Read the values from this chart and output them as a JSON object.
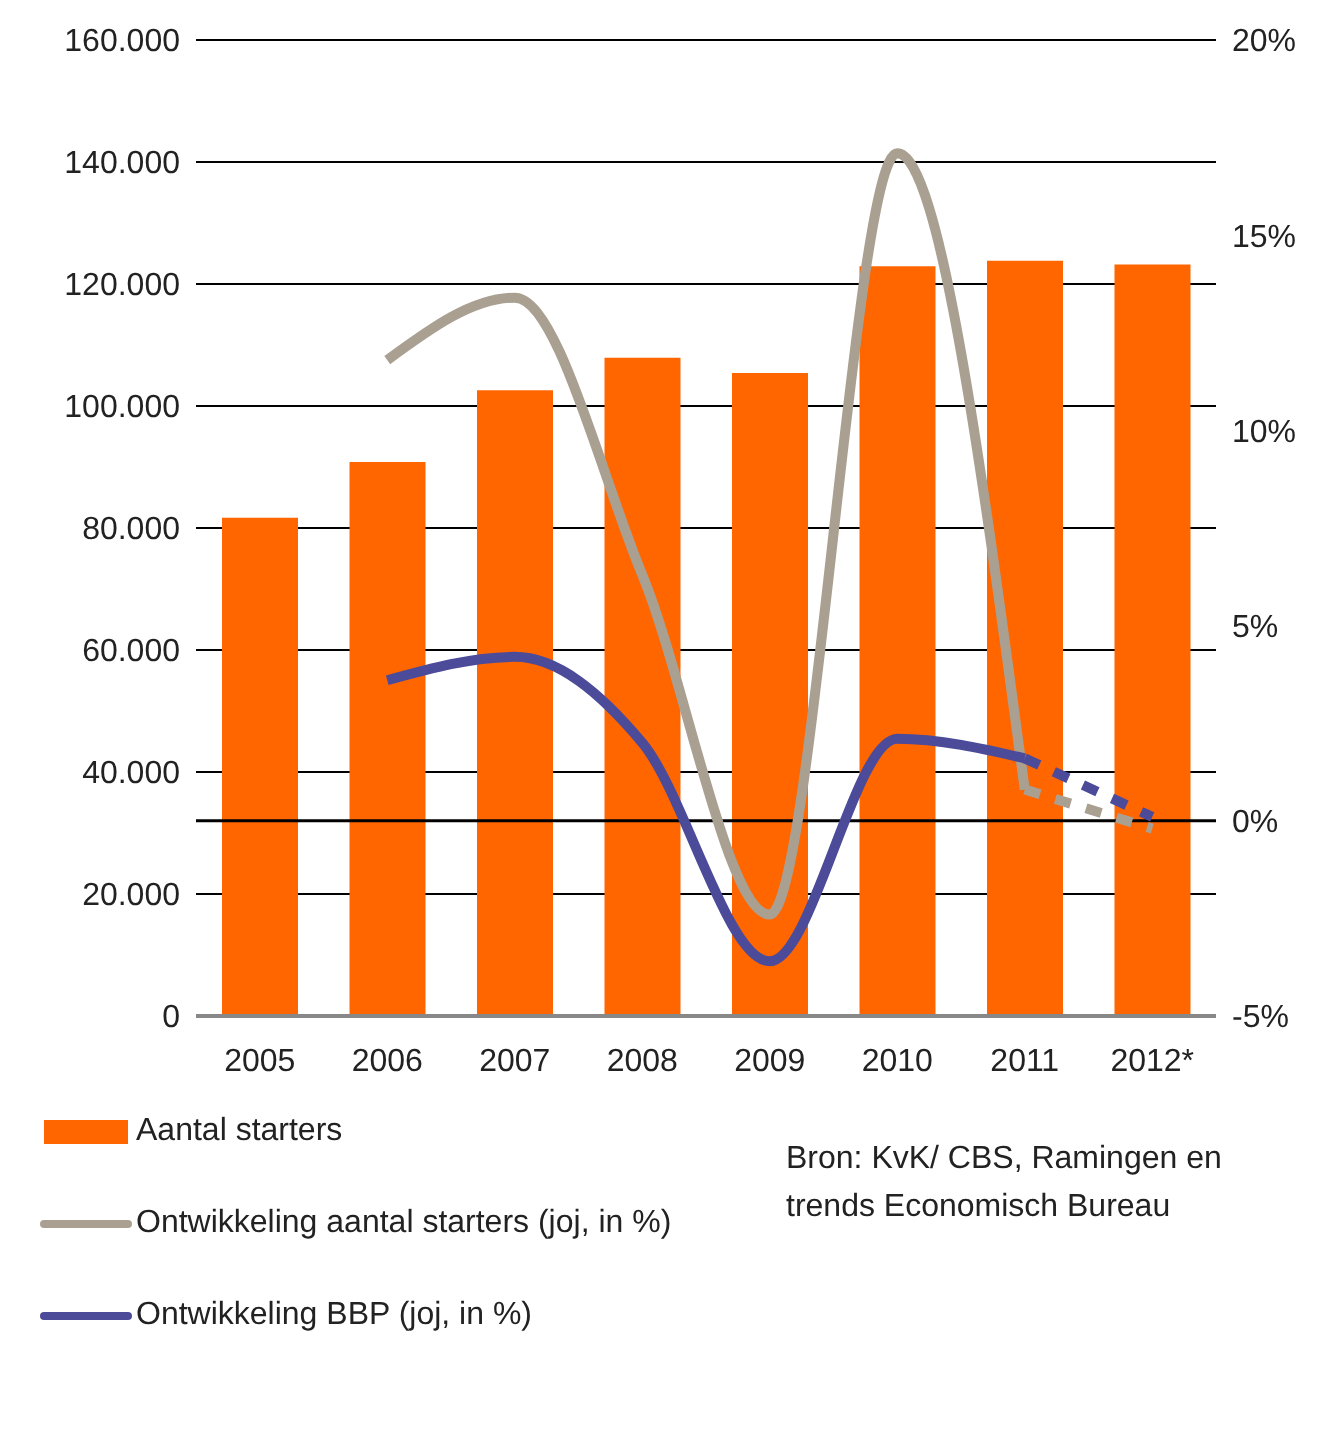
{
  "chart_data": {
    "type": "bar",
    "categories": [
      "2005",
      "2006",
      "2007",
      "2008",
      "2009",
      "2010",
      "2011",
      "2012*"
    ],
    "series": [
      {
        "name": "Aantal starters",
        "color": "#ff6600",
        "values": [
          81700,
          90800,
          102600,
          107900,
          105400,
          122900,
          123800,
          123200
        ]
      },
      {
        "name": "Ontwikkeling aantal starters (joj, in %)",
        "type": "line",
        "axis": "y2",
        "color": "#aaa091",
        "values": [
          null,
          11.8,
          13.4,
          6.3,
          -2.4,
          17.1,
          0.8,
          null
        ]
      },
      {
        "type": "line",
        "axis": "y2",
        "color": "#aaa091",
        "line_style": "dashed",
        "values": [
          null,
          null,
          null,
          null,
          null,
          null,
          0.8,
          -0.2
        ]
      },
      {
        "name": "Ontwikkeling BBP (joj, in %)",
        "type": "line",
        "axis": "y2",
        "color": "#4b4b9a",
        "values": [
          null,
          3.6,
          4.2,
          2.0,
          -3.6,
          2.1,
          1.6,
          null
        ]
      },
      {
        "type": "line",
        "axis": "y2",
        "color": "#4b4b9a",
        "line_style": "dashed",
        "values": [
          null,
          null,
          null,
          null,
          null,
          null,
          1.6,
          0.1
        ]
      }
    ],
    "ylim": [
      0,
      160000
    ],
    "yticks": [
      {
        "value": 0,
        "label": "0"
      },
      {
        "value": 20000,
        "label": "20.000"
      },
      {
        "value": 40000,
        "label": "40.000"
      },
      {
        "value": 60000,
        "label": "60.000"
      },
      {
        "value": 80000,
        "label": "80.000"
      },
      {
        "value": 100000,
        "label": "100.000"
      },
      {
        "value": 120000,
        "label": "120.000"
      },
      {
        "value": 140000,
        "label": "140.000"
      },
      {
        "value": 160000,
        "label": "160.000"
      }
    ],
    "y2lim": [
      -5,
      20
    ],
    "y2ticks": [
      {
        "value": -5,
        "label": "-5%"
      },
      {
        "value": 0,
        "label": "0%"
      },
      {
        "value": 5,
        "label": "5%"
      },
      {
        "value": 10,
        "label": "10%"
      },
      {
        "value": 15,
        "label": "15%"
      },
      {
        "value": 20,
        "label": "20%"
      }
    ],
    "ref_lines": [
      {
        "axis": "y2",
        "value": 0,
        "color": "#000000"
      }
    ],
    "grid": "y",
    "legend": "bottom",
    "annotations": [
      "Bron: KvK/ CBS, Ramingen en trends Economisch Bureau"
    ]
  }
}
